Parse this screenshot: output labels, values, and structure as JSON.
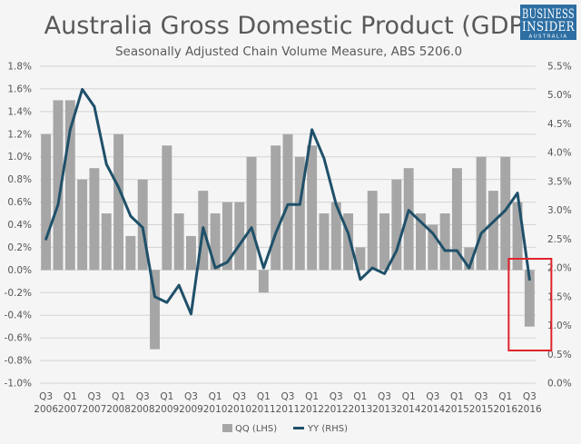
{
  "chart_data": {
    "type": "bar",
    "title": "Australia Gross Domestic Product (GDP)",
    "subtitle": "Seasonally Adjusted Chain Volume Measure, ABS 5206.0",
    "logo": {
      "line1": "BUSINESS",
      "line2": "INSIDER",
      "line3": "AUSTRALIA"
    },
    "categories": [
      "Q3 2006",
      "Q4 2006",
      "Q1 2007",
      "Q2 2007",
      "Q3 2007",
      "Q4 2007",
      "Q1 2008",
      "Q2 2008",
      "Q3 2008",
      "Q4 2008",
      "Q1 2009",
      "Q2 2009",
      "Q3 2009",
      "Q4 2009",
      "Q1 2010",
      "Q2 2010",
      "Q3 2010",
      "Q4 2010",
      "Q1 2011",
      "Q2 2011",
      "Q3 2011",
      "Q4 2011",
      "Q1 2012",
      "Q2 2012",
      "Q3 2012",
      "Q4 2012",
      "Q1 2013",
      "Q2 2013",
      "Q3 2013",
      "Q4 2013",
      "Q1 2014",
      "Q2 2014",
      "Q3 2014",
      "Q4 2014",
      "Q1 2015",
      "Q2 2015",
      "Q3 2015",
      "Q4 2015",
      "Q1 2016",
      "Q2 2016",
      "Q3 2016"
    ],
    "x_tick_labels": [
      {
        "q": "Q3",
        "year": "2006"
      },
      {
        "q": "Q1",
        "year": "2007"
      },
      {
        "q": "Q3",
        "year": "2007"
      },
      {
        "q": "Q1",
        "year": "2008"
      },
      {
        "q": "Q3",
        "year": "2008"
      },
      {
        "q": "Q1",
        "year": "2009"
      },
      {
        "q": "Q3",
        "year": "2009"
      },
      {
        "q": "Q1",
        "year": "2010"
      },
      {
        "q": "Q3",
        "year": "2010"
      },
      {
        "q": "Q1",
        "year": "2011"
      },
      {
        "q": "Q3",
        "year": "2011"
      },
      {
        "q": "Q1",
        "year": "2012"
      },
      {
        "q": "Q3",
        "year": "2012"
      },
      {
        "q": "Q1",
        "year": "2013"
      },
      {
        "q": "Q3",
        "year": "2013"
      },
      {
        "q": "Q1",
        "year": "2014"
      },
      {
        "q": "Q3",
        "year": "2014"
      },
      {
        "q": "Q1",
        "year": "2015"
      },
      {
        "q": "Q3",
        "year": "2015"
      },
      {
        "q": "Q1",
        "year": "2016"
      },
      {
        "q": "Q3",
        "year": "2016"
      }
    ],
    "series": [
      {
        "name": "QQ (LHS)",
        "type": "bar",
        "axis": "left",
        "color": "#a6a6a6",
        "values": [
          1.2,
          1.5,
          1.5,
          0.8,
          0.9,
          0.5,
          1.2,
          0.3,
          0.8,
          -0.7,
          1.1,
          0.5,
          0.3,
          0.7,
          0.5,
          0.6,
          0.6,
          1.0,
          -0.2,
          1.1,
          1.2,
          1.0,
          1.1,
          0.5,
          0.6,
          0.5,
          0.2,
          0.7,
          0.5,
          0.8,
          0.9,
          0.5,
          0.4,
          0.5,
          0.9,
          0.2,
          1.0,
          0.7,
          1.0,
          0.6,
          -0.5
        ]
      },
      {
        "name": "YY (RHS)",
        "type": "line",
        "axis": "right",
        "color": "#1f5069",
        "values": [
          2.5,
          3.1,
          4.4,
          5.1,
          4.8,
          3.8,
          3.4,
          2.9,
          2.7,
          1.5,
          1.4,
          1.7,
          1.2,
          2.7,
          2.0,
          2.1,
          2.4,
          2.7,
          2.0,
          2.6,
          3.1,
          3.1,
          4.4,
          3.9,
          3.1,
          2.6,
          1.8,
          2.0,
          1.9,
          2.3,
          3.0,
          2.8,
          2.6,
          2.3,
          2.3,
          2.0,
          2.6,
          2.8,
          3.0,
          3.3,
          1.8
        ]
      }
    ],
    "y_left": {
      "min": -1.0,
      "max": 1.8,
      "step": 0.2,
      "format": "percent1"
    },
    "y_right": {
      "min": 0.0,
      "max": 5.5,
      "step": 0.5,
      "format": "percent1"
    },
    "y_left_ticks": [
      "-1.0%",
      "-0.8%",
      "-0.6%",
      "-0.4%",
      "-0.2%",
      "0.0%",
      "0.2%",
      "0.4%",
      "0.6%",
      "0.8%",
      "1.0%",
      "1.2%",
      "1.4%",
      "1.6%",
      "1.8%"
    ],
    "y_right_ticks": [
      "0.0%",
      "0.5%",
      "1.0%",
      "1.5%",
      "2.0%",
      "2.5%",
      "3.0%",
      "3.5%",
      "4.0%",
      "4.5%",
      "5.0%",
      "5.5%"
    ],
    "grid": true,
    "legend_position": "bottom-center",
    "annotation": {
      "type": "highlight-box",
      "color": "#e0242b",
      "covers_categories": [
        "Q3 2016"
      ]
    },
    "colors": {
      "background": "#f5f5f5",
      "grid": "#d4d4d4",
      "logo_bg": "#2d6fa3"
    }
  }
}
